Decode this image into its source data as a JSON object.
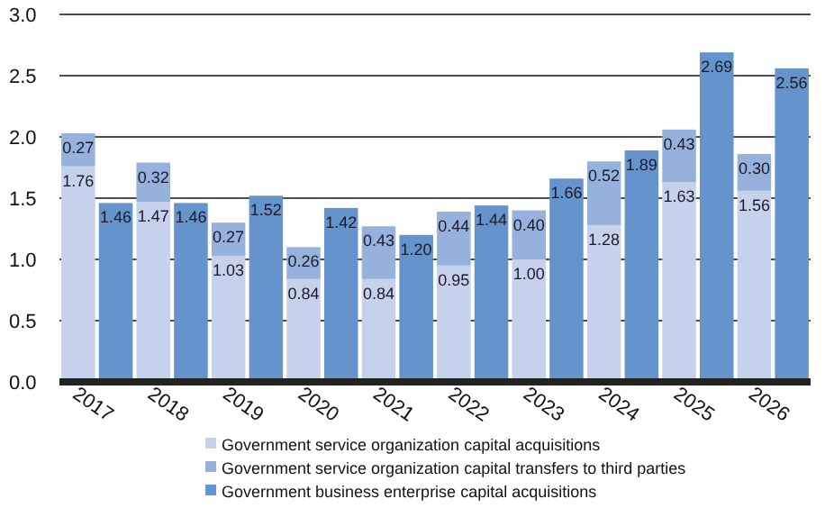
{
  "chart_data": {
    "type": "bar",
    "stacked": true,
    "categories": [
      "2017",
      null,
      "2018",
      null,
      "2019",
      null,
      "2020",
      null,
      "2021",
      null,
      "2022",
      null,
      "2023",
      null,
      "2024",
      null,
      "2025",
      null,
      "2026",
      null
    ],
    "series": [
      {
        "name": "Government service organization capital acquisitions",
        "color": "#c6d2eb",
        "values": [
          1.76,
          null,
          1.47,
          null,
          1.03,
          null,
          0.84,
          null,
          0.84,
          null,
          0.95,
          null,
          1.0,
          null,
          1.28,
          null,
          1.63,
          null,
          1.56,
          null
        ],
        "value_labels": [
          "1.76",
          null,
          "1.47",
          null,
          "1.03",
          null,
          "0.84",
          null,
          "0.84",
          null,
          "0.95",
          null,
          "1.00",
          null,
          "1.28",
          null,
          "1.63",
          null,
          "1.56",
          null
        ]
      },
      {
        "name": "Government service organization capital transfers to third parties",
        "color": "#95b1dc",
        "values": [
          0.27,
          null,
          0.32,
          null,
          0.27,
          null,
          0.26,
          null,
          0.43,
          null,
          0.44,
          null,
          0.4,
          null,
          0.52,
          null,
          0.43,
          null,
          0.3,
          null
        ],
        "value_labels": [
          "0.27",
          null,
          "0.32",
          null,
          "0.27",
          null,
          "0.26",
          null,
          "0.43",
          null,
          "0.44",
          null,
          "0.40",
          null,
          "0.52",
          null,
          "0.43",
          null,
          "0.30",
          null
        ]
      },
      {
        "name": "Government business enterprise capital acquisitions",
        "color": "#6593cb",
        "values": [
          null,
          1.46,
          null,
          1.46,
          null,
          1.52,
          null,
          1.42,
          null,
          1.2,
          null,
          1.44,
          null,
          1.66,
          null,
          1.89,
          null,
          2.69,
          null,
          2.56
        ],
        "value_labels": [
          null,
          "1.46",
          null,
          "1.46",
          null,
          "1.52",
          null,
          "1.42",
          null,
          "1.20",
          null,
          "1.44",
          null,
          "1.66",
          null,
          "1.89",
          null,
          "2.69",
          null,
          "2.56"
        ]
      }
    ],
    "ylim": [
      0,
      3
    ],
    "yticks": [
      {
        "value": 0,
        "label": "0.0"
      },
      {
        "value": 0.5,
        "label": "0.5"
      },
      {
        "value": 1,
        "label": "1.0"
      },
      {
        "value": 1.5,
        "label": "1.5"
      },
      {
        "value": 2,
        "label": "2.0"
      },
      {
        "value": 2.5,
        "label": "2.5"
      },
      {
        "value": 3,
        "label": "3.0"
      }
    ],
    "grid": "y",
    "legend": "bottom"
  }
}
